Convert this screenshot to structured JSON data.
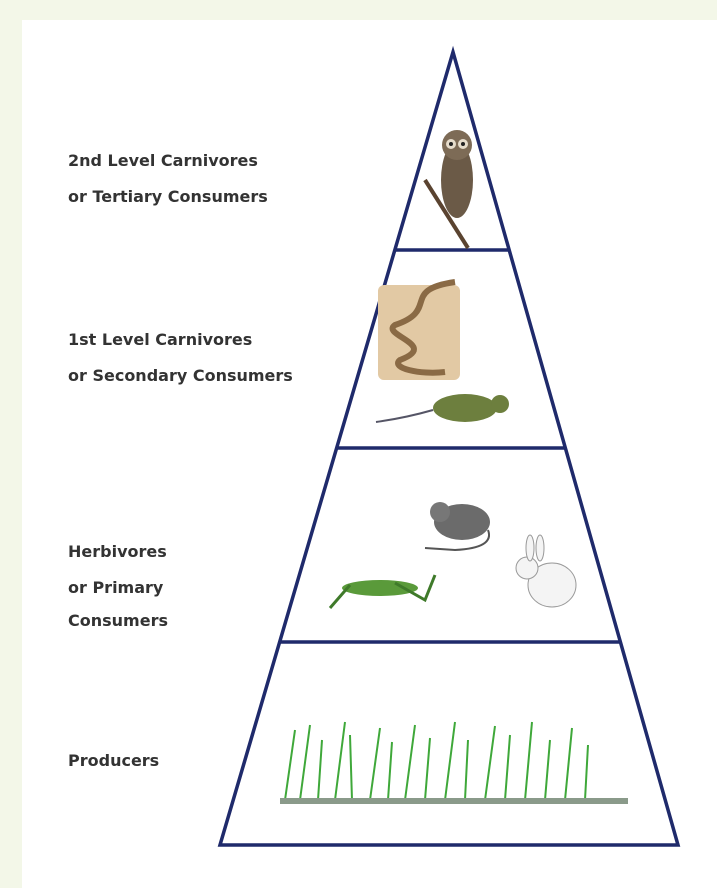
{
  "levels": [
    {
      "lines": [
        "2nd Level Carnivores",
        "or Tertiary Consumers"
      ]
    },
    {
      "lines": [
        "1st Level Carnivores",
        "or Secondary Consumers"
      ]
    },
    {
      "lines": [
        "Herbivores",
        "or Primary",
        "Consumers"
      ]
    },
    {
      "lines": [
        "Producers"
      ]
    }
  ]
}
